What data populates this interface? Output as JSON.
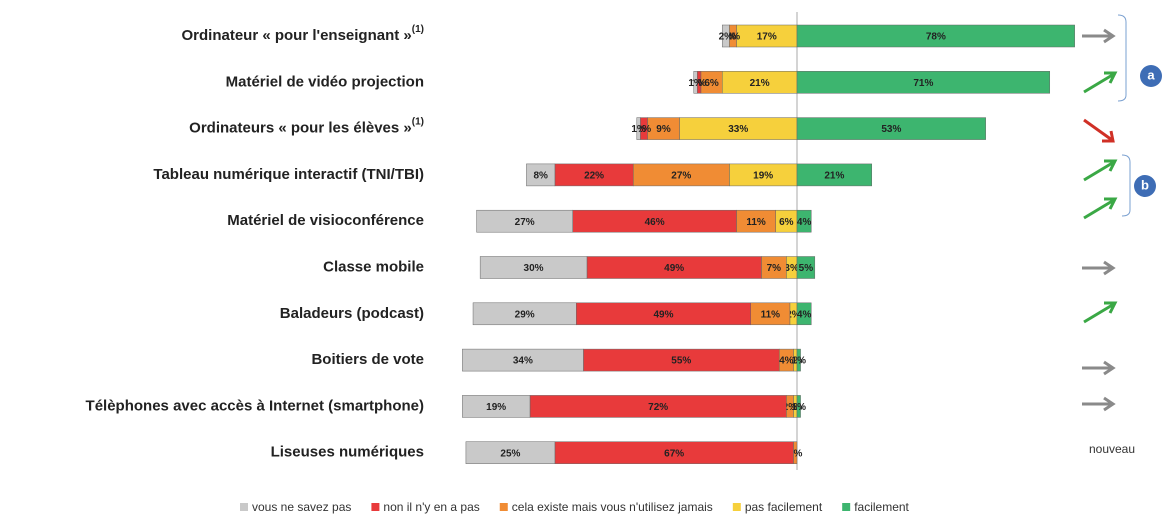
{
  "chart_data": {
    "type": "diverging-bar",
    "categories": [
      "Ordinateur « pour l'enseignant »",
      "Matériel de vidéo projection",
      "Ordinateurs « pour les élèves »",
      "Tableau numérique interactif (TNI/TBI)",
      "Matériel de visioconférence",
      "Classe mobile",
      "Baladeurs (podcast)",
      "Boitiers de vote",
      "Télèphones avec accès à Internet (smartphone)",
      "Liseuses numériques"
    ],
    "category_notes": [
      "(1)",
      null,
      "(1)",
      null,
      null,
      null,
      null,
      null,
      null,
      null
    ],
    "series": [
      {
        "name": "vous ne savez pas",
        "color": "#c9c9c9",
        "values": [
          2,
          1,
          1,
          8,
          27,
          30,
          29,
          34,
          19,
          25
        ],
        "value_labels": [
          "2%",
          "1%",
          "1%",
          "8%",
          "27%",
          "30%",
          "29%",
          "34%",
          "19%",
          "25%"
        ]
      },
      {
        "name": "non il n'y en a pas",
        "color": "#e83a3b",
        "values": [
          0,
          1,
          2,
          22,
          46,
          49,
          49,
          55,
          72,
          67
        ],
        "value_labels": [
          "0%",
          "1%",
          "2%",
          "22%",
          "46%",
          "49%",
          "49%",
          "55%",
          "72%",
          "67%"
        ]
      },
      {
        "name": "cela existe mais vous n'utilisez jamais",
        "color": "#f08c34",
        "values": [
          2,
          6,
          9,
          27,
          11,
          7,
          11,
          4,
          2,
          1
        ],
        "value_labels": [
          "2%",
          "6%",
          "9%",
          "27%",
          "11%",
          "7%",
          "11%",
          "4%",
          "2%",
          "1%"
        ]
      },
      {
        "name": "pas facilement",
        "color": "#f6d03c",
        "values": [
          17,
          21,
          33,
          19,
          6,
          3,
          2,
          1,
          1,
          null
        ],
        "value_labels": [
          "17%",
          "21%",
          "33%",
          "19%",
          "6%",
          "3%",
          "2%",
          "1%",
          "1%",
          null
        ]
      },
      {
        "name": "facilement",
        "color": "#3db56f",
        "values": [
          78,
          71,
          53,
          21,
          4,
          5,
          4,
          1,
          1,
          null
        ],
        "value_labels": [
          "78%",
          "71%",
          "53%",
          "21%",
          "4%",
          "5%",
          "4%",
          "1%",
          "1%",
          null
        ]
      }
    ],
    "annotations": [
      "a",
      "b",
      "nouveau"
    ]
  }
}
